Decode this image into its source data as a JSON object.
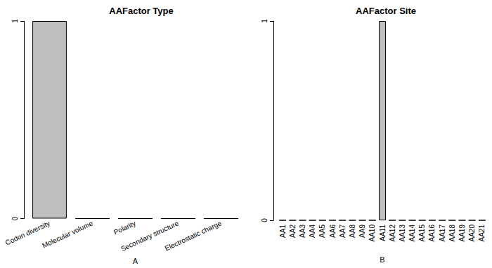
{
  "chart_data": [
    {
      "type": "bar",
      "title": "AAFactor Type",
      "xlabel": "A",
      "categories": [
        "Codon diversity",
        "Molecular volume",
        "Polarity",
        "Secondary structure",
        "Electrostatic charge"
      ],
      "values": [
        1,
        0,
        0,
        0,
        0
      ],
      "color": "#bebebe",
      "ylim": [
        0,
        1
      ],
      "yticks": [
        0,
        1
      ],
      "grid": false
    },
    {
      "type": "bar",
      "title": "AAFactor Site",
      "xlabel": "B",
      "categories": [
        "AA1",
        "AA2",
        "AA3",
        "AA4",
        "AA5",
        "AA6",
        "AA7",
        "AA8",
        "AA9",
        "AA10",
        "AA11",
        "AA12",
        "AA13",
        "AA14",
        "AA15",
        "AA16",
        "AA17",
        "AA18",
        "AA19",
        "AA20",
        "AA21"
      ],
      "values": [
        0,
        0,
        0,
        0,
        0,
        0,
        0,
        0,
        0,
        0,
        1,
        0,
        0,
        0,
        0,
        0,
        0,
        0,
        0,
        0,
        0
      ],
      "color": "#bebebe",
      "ylim": [
        0,
        1
      ],
      "yticks": [
        0,
        1
      ],
      "grid": false
    }
  ]
}
